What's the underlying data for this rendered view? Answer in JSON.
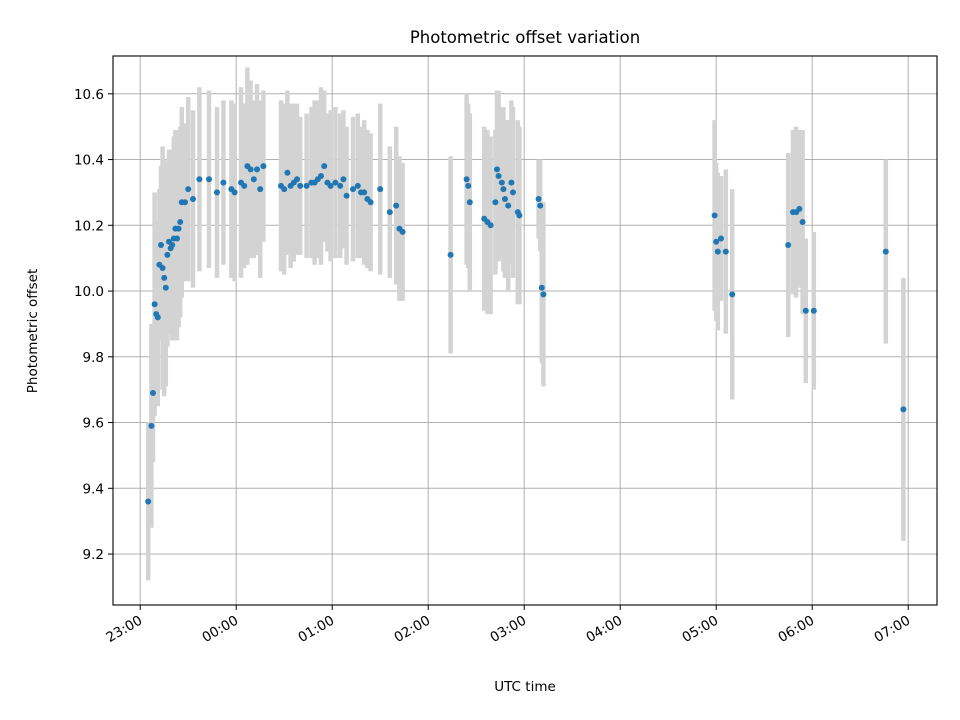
{
  "chart_data": {
    "type": "scatter",
    "title": "Photometric offset variation",
    "xlabel": "UTC time",
    "ylabel": "Photometric offset",
    "xlim": [
      "22:43",
      "07:18"
    ],
    "ylim": [
      9.045,
      10.715
    ],
    "x_ticks": [
      "23:00",
      "00:00",
      "01:00",
      "02:00",
      "03:00",
      "04:00",
      "05:00",
      "06:00",
      "07:00"
    ],
    "y_ticks": [
      "9.2",
      "9.4",
      "9.6",
      "9.8",
      "10.0",
      "10.2",
      "10.4",
      "10.6"
    ],
    "grid": true,
    "colors": {
      "points": "#1f77b4",
      "error_bars": "#d3d3d3",
      "grid": "#b0b0b0"
    },
    "series": [
      {
        "x": [
          "23:05",
          "23:07",
          "23:08",
          "23:09",
          "23:10",
          "23:11",
          "23:12",
          "23:13",
          "23:14",
          "23:15",
          "23:16",
          "23:17",
          "23:18",
          "23:19",
          "23:20",
          "23:21",
          "23:22",
          "23:23",
          "23:24",
          "23:25",
          "23:26",
          "23:28",
          "23:30",
          "23:33",
          "23:37",
          "23:43",
          "23:48",
          "23:52",
          "23:57",
          "23:59",
          "00:03",
          "00:05",
          "00:07",
          "00:09",
          "00:11",
          "00:13",
          "00:15",
          "00:17",
          "00:28",
          "00:30",
          "00:32",
          "00:34",
          "00:36",
          "00:38",
          "00:40",
          "00:44",
          "00:47",
          "00:49",
          "00:51",
          "00:53",
          "00:55",
          "00:57",
          "00:59",
          "01:02",
          "01:05",
          "01:07",
          "01:09",
          "01:13",
          "01:16",
          "01:18",
          "01:20",
          "01:22",
          "01:24",
          "01:30",
          "01:36",
          "01:40",
          "01:42",
          "01:44",
          "02:14",
          "02:24",
          "02:25",
          "02:26",
          "02:35",
          "02:37",
          "02:39",
          "02:42",
          "02:43",
          "02:44",
          "02:46",
          "02:47",
          "02:48",
          "02:50",
          "02:52",
          "02:53",
          "02:56",
          "02:57",
          "03:09",
          "03:10",
          "03:11",
          "03:12",
          "04:59",
          "05:00",
          "05:01",
          "05:03",
          "05:06",
          "05:10",
          "05:45",
          "05:48",
          "05:50",
          "05:52",
          "05:54",
          "05:56",
          "06:01",
          "06:46",
          "06:57"
        ],
        "y": [
          9.36,
          9.59,
          9.69,
          9.96,
          9.93,
          9.92,
          10.08,
          10.14,
          10.07,
          10.04,
          10.01,
          10.11,
          10.15,
          10.13,
          10.14,
          10.16,
          10.19,
          10.16,
          10.19,
          10.21,
          10.27,
          10.27,
          10.31,
          10.28,
          10.34,
          10.34,
          10.3,
          10.33,
          10.31,
          10.3,
          10.33,
          10.32,
          10.38,
          10.37,
          10.34,
          10.37,
          10.31,
          10.38,
          10.32,
          10.31,
          10.36,
          10.32,
          10.33,
          10.34,
          10.32,
          10.32,
          10.33,
          10.33,
          10.34,
          10.35,
          10.38,
          10.33,
          10.32,
          10.33,
          10.32,
          10.34,
          10.29,
          10.31,
          10.32,
          10.3,
          10.3,
          10.28,
          10.27,
          10.31,
          10.24,
          10.26,
          10.19,
          10.18,
          10.11,
          10.34,
          10.32,
          10.27,
          10.22,
          10.21,
          10.2,
          10.27,
          10.37,
          10.35,
          10.33,
          10.31,
          10.28,
          10.26,
          10.33,
          10.3,
          10.24,
          10.23,
          10.28,
          10.26,
          10.01,
          9.99,
          10.23,
          10.15,
          10.12,
          10.16,
          10.12,
          9.99,
          10.14,
          10.24,
          10.24,
          10.25,
          10.21,
          9.94,
          9.94,
          10.12,
          9.64
        ],
        "err": [
          0.24,
          0.31,
          0.21,
          0.34,
          0.28,
          0.27,
          0.23,
          0.24,
          0.37,
          0.36,
          0.3,
          0.28,
          0.28,
          0.25,
          0.29,
          0.31,
          0.3,
          0.31,
          0.3,
          0.29,
          0.29,
          0.24,
          0.28,
          0.27,
          0.28,
          0.27,
          0.26,
          0.25,
          0.27,
          0.27,
          0.29,
          0.25,
          0.3,
          0.27,
          0.24,
          0.26,
          0.27,
          0.23,
          0.26,
          0.26,
          0.25,
          0.25,
          0.24,
          0.23,
          0.21,
          0.22,
          0.23,
          0.25,
          0.24,
          0.27,
          0.23,
          0.21,
          0.23,
          0.23,
          0.22,
          0.21,
          0.21,
          0.22,
          0.22,
          0.2,
          0.22,
          0.21,
          0.21,
          0.26,
          0.2,
          0.24,
          0.22,
          0.21,
          0.3,
          0.26,
          0.25,
          0.27,
          0.28,
          0.28,
          0.27,
          0.22,
          0.24,
          0.26,
          0.23,
          0.25,
          0.24,
          0.26,
          0.25,
          0.26,
          0.28,
          0.27,
          0.12,
          0.14,
          0.23,
          0.28,
          0.29,
          0.24,
          0.24,
          0.19,
          0.25,
          0.32,
          0.28,
          0.25,
          0.26,
          0.24,
          0.28,
          0.22,
          0.24,
          0.28,
          0.4
        ]
      }
    ]
  }
}
